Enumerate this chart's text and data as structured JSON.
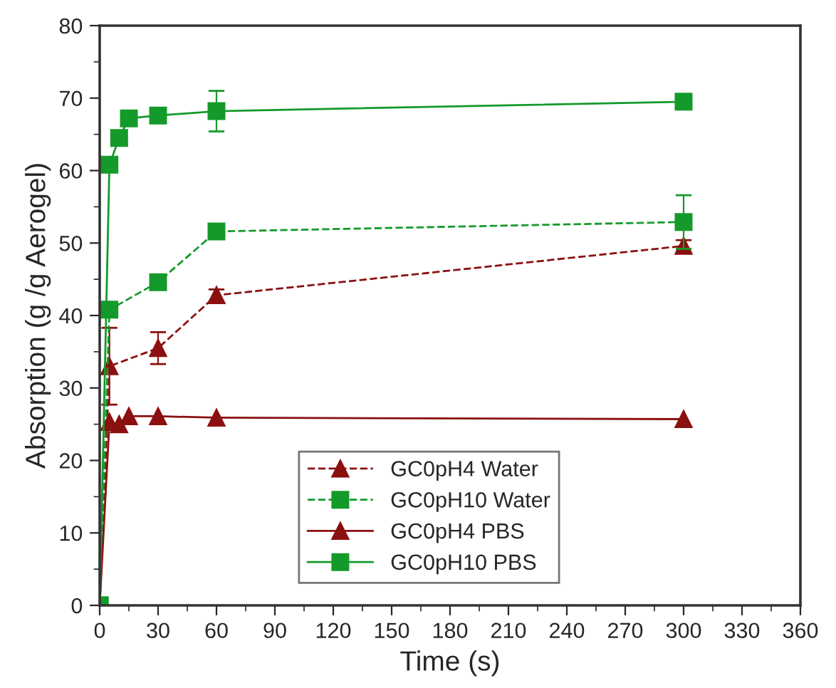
{
  "chart_data": {
    "type": "line",
    "xlabel": "Time (s)",
    "ylabel": "Absorption (g /g Aerogel)",
    "xlim": [
      0,
      360
    ],
    "xticks": [
      0,
      30,
      60,
      90,
      120,
      150,
      180,
      210,
      240,
      270,
      300,
      330,
      360
    ],
    "ylim": [
      0,
      80
    ],
    "yticks": [
      0,
      10,
      20,
      30,
      40,
      50,
      60,
      70,
      80
    ],
    "grid": false,
    "legend": "bottom",
    "series": [
      {
        "name": "GC0pH4 Water",
        "color": "#8b1010",
        "marker": "triangle",
        "line_style": "dashed",
        "x": [
          0,
          5,
          30,
          60,
          300
        ],
        "values": [
          0,
          33,
          35.5,
          42.8,
          49.6
        ],
        "errors": [
          null,
          5.3,
          2.2,
          0.8,
          0.8
        ]
      },
      {
        "name": "GC0pH10 Water",
        "color": "#149a2a",
        "marker": "square",
        "line_style": "dashed",
        "x": [
          0,
          5,
          30,
          60,
          300
        ],
        "values": [
          0,
          40.8,
          44.6,
          51.6,
          52.9
        ],
        "errors": [
          null,
          null,
          null,
          null,
          3.7
        ]
      },
      {
        "name": "GC0pH4 PBS",
        "color": "#8b1010",
        "marker": "triangle",
        "line_style": "solid",
        "x": [
          0,
          5,
          10,
          15,
          30,
          60,
          300
        ],
        "values": [
          0,
          25.3,
          25,
          26.1,
          26.1,
          25.9,
          25.7
        ],
        "errors": [
          null,
          null,
          null,
          null,
          null,
          null,
          null
        ]
      },
      {
        "name": "GC0pH10 PBS",
        "color": "#149a2a",
        "marker": "square",
        "line_style": "solid",
        "x": [
          0,
          5,
          10,
          15,
          30,
          60,
          300
        ],
        "values": [
          0,
          60.8,
          64.5,
          67.2,
          67.6,
          68.2,
          69.5
        ],
        "errors": [
          null,
          null,
          null,
          null,
          1,
          2.8,
          null
        ]
      }
    ]
  }
}
